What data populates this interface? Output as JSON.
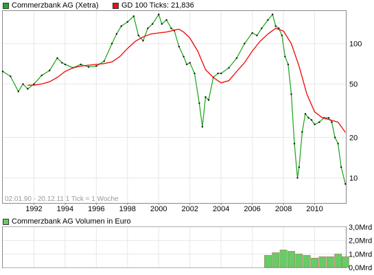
{
  "price_panel": {
    "legend": [
      {
        "label": "Commerzbank AG (Xetra)",
        "color": "#22aa22"
      },
      {
        "label": "GD 100 Ticks: 21,836",
        "color": "#ee1111"
      }
    ],
    "note": "02.01.90 - 20.12.11   1 Tick = 1 Woche"
  },
  "volume_panel": {
    "legend": [
      {
        "label": "Commerzbank AG Volumen in Euro",
        "color": "#66cc66"
      }
    ]
  },
  "chart_data": [
    {
      "type": "line",
      "title": "",
      "series": [
        {
          "name": "Commerzbank AG (Xetra)",
          "color": "#22aa22",
          "x": [
            1990.0,
            1990.5,
            1991.0,
            1991.3,
            1991.6,
            1992.0,
            1992.5,
            1993.0,
            1993.5,
            1993.8,
            1994.0,
            1994.5,
            1995.0,
            1995.5,
            1996.0,
            1996.5,
            1997.0,
            1997.3,
            1997.6,
            1998.0,
            1998.4,
            1998.7,
            1999.0,
            1999.3,
            1999.6,
            2000.0,
            2000.2,
            2000.5,
            2000.8,
            2001.0,
            2001.3,
            2001.6,
            2001.8,
            2002.0,
            2002.3,
            2002.6,
            2002.8,
            2003.0,
            2003.2,
            2003.5,
            2003.8,
            2004.0,
            2004.5,
            2005.0,
            2005.5,
            2006.0,
            2006.3,
            2006.6,
            2007.0,
            2007.3,
            2007.5,
            2007.7,
            2007.9,
            2008.1,
            2008.3,
            2008.5,
            2008.7,
            2008.9,
            2009.0,
            2009.2,
            2009.4,
            2009.6,
            2009.8,
            2010.0,
            2010.3,
            2010.6,
            2010.9,
            2011.1,
            2011.3,
            2011.5,
            2011.7,
            2011.97
          ],
          "values": [
            62,
            57,
            44,
            50,
            46,
            50,
            58,
            63,
            78,
            72,
            70,
            66,
            70,
            67,
            68,
            74,
            100,
            118,
            135,
            145,
            160,
            115,
            105,
            130,
            140,
            165,
            140,
            150,
            130,
            125,
            95,
            80,
            70,
            72,
            60,
            36,
            24,
            40,
            38,
            56,
            60,
            60,
            66,
            78,
            100,
            120,
            115,
            130,
            150,
            165,
            135,
            130,
            115,
            80,
            70,
            42,
            18,
            10,
            12,
            22,
            30,
            28,
            27,
            25,
            26,
            28,
            28,
            26,
            20,
            18,
            12,
            9
          ]
        },
        {
          "name": "GD 100 Ticks: 21,836",
          "color": "#ee1111",
          "x": [
            1991.6,
            1992.0,
            1992.5,
            1993.0,
            1993.5,
            1994.0,
            1994.5,
            1995.0,
            1995.5,
            1996.0,
            1996.5,
            1997.0,
            1997.5,
            1998.0,
            1998.5,
            1999.0,
            1999.5,
            2000.0,
            2000.5,
            2001.0,
            2001.3,
            2001.6,
            2002.0,
            2002.5,
            2003.0,
            2003.5,
            2004.0,
            2004.5,
            2005.0,
            2005.5,
            2006.0,
            2006.5,
            2007.0,
            2007.5,
            2008.0,
            2008.5,
            2009.0,
            2009.5,
            2010.0,
            2010.5,
            2011.0,
            2011.5,
            2011.97
          ],
          "values": [
            49,
            49,
            50,
            52,
            56,
            62,
            66,
            68,
            69,
            70,
            71,
            73,
            80,
            92,
            104,
            112,
            118,
            120,
            122,
            126,
            128,
            122,
            110,
            88,
            64,
            56,
            51,
            53,
            62,
            72,
            88,
            104,
            118,
            130,
            124,
            100,
            68,
            42,
            31,
            28,
            27,
            26,
            21.836
          ]
        }
      ],
      "ylog": true,
      "ylim": [
        6.5,
        175
      ],
      "xlim": [
        1990.0,
        2012.0
      ],
      "x_ticks": [
        1992,
        1994,
        1996,
        1998,
        2000,
        2002,
        2004,
        2006,
        2008,
        2010
      ],
      "x_tick_labels": [
        "1992",
        "1994",
        "1996",
        "1998",
        "2000",
        "2002",
        "2004",
        "2006",
        "2008",
        "2010"
      ],
      "y_ticks": [
        10,
        20,
        50,
        100
      ],
      "y_tick_labels": [
        "10",
        "20",
        "50",
        "100"
      ],
      "grid": true
    },
    {
      "type": "bar",
      "title": "",
      "xlim": [
        1990.0,
        2012.0
      ],
      "ylim": [
        0,
        3.0
      ],
      "y_ticks": [
        0,
        1,
        2,
        3
      ],
      "y_tick_labels": [
        "0,0Mrd",
        "1,0Mrd",
        "2,0Mrd",
        "3,0Mrd"
      ],
      "grid": true,
      "series": [
        {
          "name": "Commerzbank AG Volumen in Euro",
          "color": "#66cc66",
          "x": [
            2007.0,
            2007.5,
            2008.0,
            2008.5,
            2009.0,
            2009.5,
            2010.0,
            2010.5,
            2011.0,
            2011.5,
            2011.97
          ],
          "values": [
            0.9,
            1.1,
            1.3,
            1.2,
            1.0,
            0.9,
            0.7,
            0.8,
            0.8,
            1.0,
            0.8
          ]
        }
      ]
    }
  ]
}
